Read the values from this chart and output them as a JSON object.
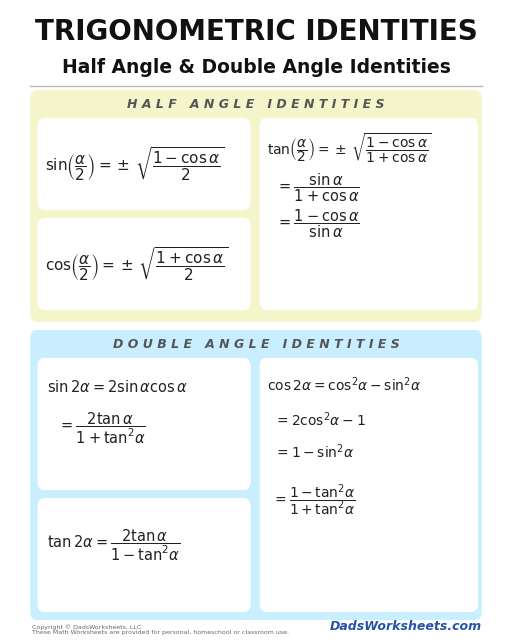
{
  "title": "TRIGONOMETRIC IDENTITIES",
  "subtitle": "Half Angle & Double Angle Identities",
  "half_angle_title": "H A L F   A N G L E   I D E N T I T I E S",
  "double_angle_title": "D O U B L E   A N G L E   I D E N T I T I E S",
  "bg_color": "#ffffff",
  "half_bg": "#f5f5cc",
  "double_bg": "#c8eeff",
  "box_bg": "#ffffff",
  "title_color": "#111111",
  "subtitle_color": "#111111",
  "section_title_color": "#555555",
  "formula_color": "#222222",
  "copyright": "Copyright © DadsWorksheets, LLC\nThese Math Worksheets are provided for personal, homeschool or classroom use.",
  "watermark": "DadsWorksheets.com"
}
